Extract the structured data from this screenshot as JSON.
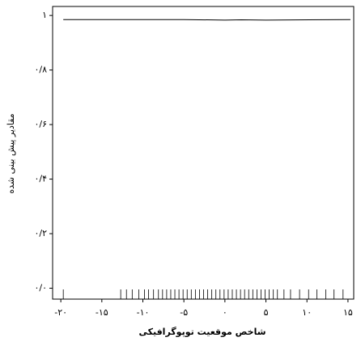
{
  "chart_data": {
    "type": "line",
    "xlabel": "شاخص موقعیت توپوگرافیکی",
    "ylabel": "مقادیر پیش بینی شده",
    "xlim": [
      -21,
      15.7
    ],
    "ylim": [
      -0.04,
      1.033
    ],
    "xticks": [
      {
        "value": -20,
        "label": "-۲۰"
      },
      {
        "value": -15,
        "label": "-۱۵"
      },
      {
        "value": -10,
        "label": "-۱۰"
      },
      {
        "value": -5,
        "label": "-۵"
      },
      {
        "value": 0,
        "label": "۰"
      },
      {
        "value": 5,
        "label": "۵"
      },
      {
        "value": 10,
        "label": "۱۰"
      },
      {
        "value": 15,
        "label": "۱۵"
      }
    ],
    "yticks": [
      {
        "value": 0,
        "label": "۰/۰"
      },
      {
        "value": 0.2,
        "label": "۰/۲"
      },
      {
        "value": 0.4,
        "label": "۰/۴"
      },
      {
        "value": 0.6,
        "label": "۰/۶"
      },
      {
        "value": 0.8,
        "label": "۰/۸"
      },
      {
        "value": 1,
        "label": "۱"
      }
    ],
    "series": [
      {
        "color": "#000000",
        "x": [
          -19.7,
          -5,
          0,
          2,
          5,
          15.3
        ],
        "values": [
          0.985,
          0.985,
          0.983,
          0.984,
          0.983,
          0.985
        ]
      }
    ],
    "rug": [
      -19.7,
      -12.7,
      -12,
      -11.3,
      -10.5,
      -9.8,
      -9.3,
      -8.7,
      -8.1,
      -7.6,
      -7.1,
      -6.6,
      -6.1,
      -5.6,
      -5.1,
      -4.6,
      -4.1,
      -3.6,
      -3.1,
      -2.6,
      -2.1,
      -1.6,
      -1.1,
      -0.6,
      -0.1,
      0.4,
      0.9,
      1.4,
      1.9,
      2.4,
      2.9,
      3.4,
      3.9,
      4.4,
      4.9,
      5.4,
      5.9,
      6.4,
      7.2,
      8,
      9.1,
      10.2,
      11.2,
      12.3,
      13.3,
      14.4
    ]
  }
}
